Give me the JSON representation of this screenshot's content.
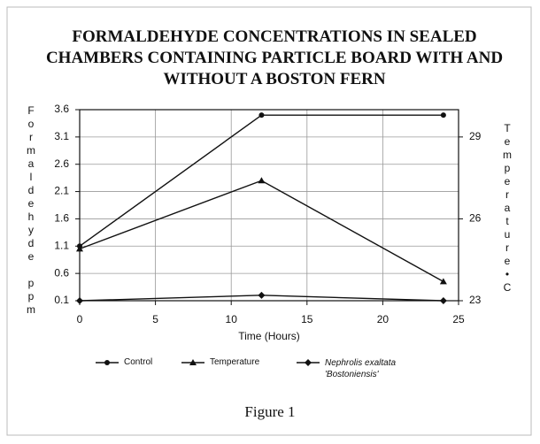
{
  "chart_data": {
    "type": "line",
    "title": "FORMALDEHYDE CONCENTRATIONS IN SEALED CHAMBERS CONTAINING PARTICLE BOARD WITH AND WITHOUT A BOSTON FERN",
    "x_label": "Time (Hours)",
    "y_label": "Formaldehyde ppm",
    "y2_label": "Temperature•C",
    "caption": "Figure 1",
    "x": [
      0,
      12,
      24
    ],
    "xlim": [
      0,
      25
    ],
    "xticks": [
      0,
      5,
      10,
      15,
      20,
      25
    ],
    "ylim": [
      0.1,
      3.6
    ],
    "yticks": [
      0.1,
      0.6,
      1.1,
      1.6,
      2.1,
      2.6,
      3.1,
      3.6
    ],
    "y2lim": [
      23,
      30
    ],
    "y2ticks": [
      23,
      26,
      29
    ],
    "grid": true,
    "series": [
      {
        "name": "Control",
        "color": "#111111",
        "values": [
          1.1,
          3.5,
          3.5
        ]
      },
      {
        "name": "Temperature",
        "color": "#111111",
        "axis": "y2",
        "values": [
          24.9,
          27.4,
          23.7
        ]
      },
      {
        "name": "Nephrolis exaltata 'Bostoniensis'",
        "color": "#111111",
        "values": [
          0.1,
          0.2,
          0.1
        ]
      }
    ]
  }
}
